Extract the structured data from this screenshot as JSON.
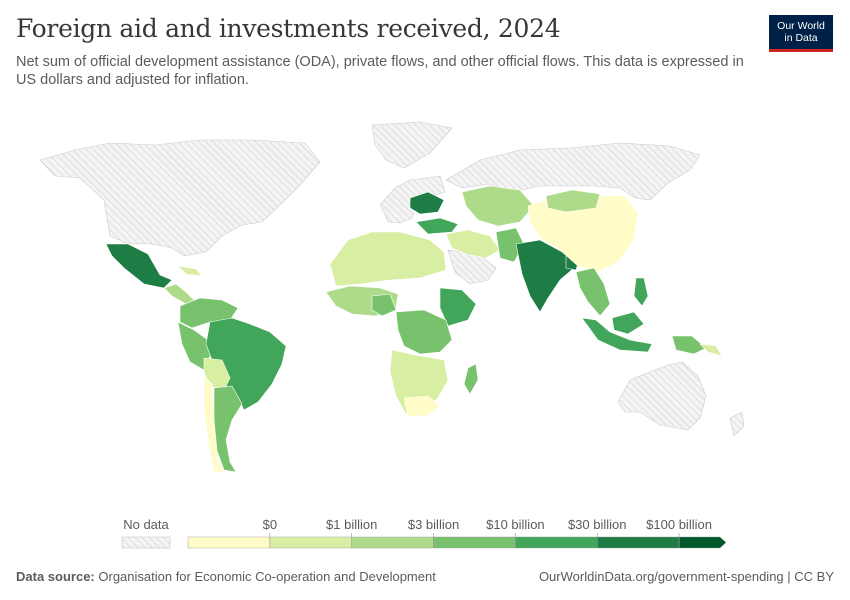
{
  "title": "Foreign aid and investments received, 2024",
  "subtitle": "Net sum of official development assistance (ODA), private flows, and other official flows. This data is expressed in US dollars and adjusted for inflation.",
  "logo": {
    "line1": "Our World",
    "line2": "in Data"
  },
  "legend": {
    "no_data_label": "No data",
    "bins": [
      {
        "color": "#fffcc8"
      },
      {
        "color": "#d8eea2"
      },
      {
        "color": "#aedb8a"
      },
      {
        "color": "#78c26d"
      },
      {
        "color": "#41a55a"
      },
      {
        "color": "#1e7d45"
      },
      {
        "color": "#00592c"
      }
    ],
    "tick_labels": [
      "$0",
      "$1 billion",
      "$3 billion",
      "$10 billion",
      "$30 billion",
      "$100 billion"
    ]
  },
  "colors": {
    "no_data": "#f0f0f0",
    "border": "#ffffff",
    "hatch": "#cfcfcf"
  },
  "footer": {
    "source_label": "Data source:",
    "source_text": "Organisation for Economic Co-operation and Development",
    "url_text": "OurWorldinData.org/government-spending | CC BY"
  }
}
